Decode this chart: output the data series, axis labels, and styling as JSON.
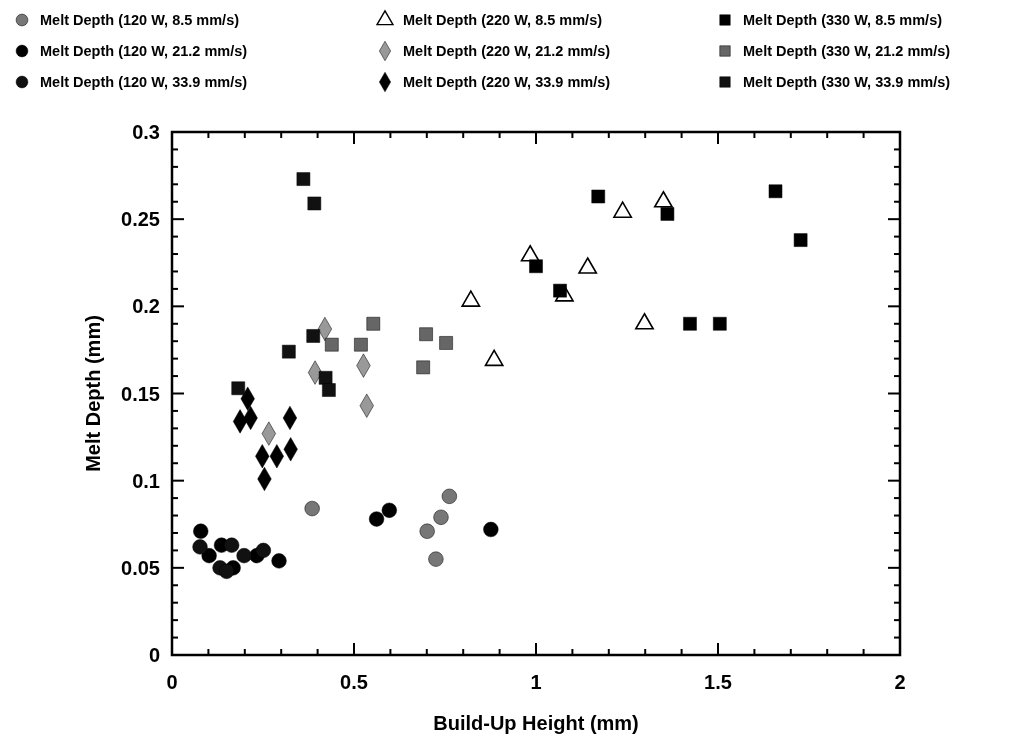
{
  "chart_data": {
    "type": "scatter",
    "xlabel": "Build-Up Height (mm)",
    "ylabel": "Melt Depth (mm)",
    "legend": "top",
    "grid": false,
    "xlim": [
      0,
      2
    ],
    "ylim": [
      0,
      0.3
    ],
    "xticks": [
      0,
      {
        "value": 0.1,
        "label": null
      },
      {
        "value": 0.2,
        "label": null
      },
      {
        "value": 0.3,
        "label": null
      },
      {
        "value": 0.4,
        "label": null
      },
      0.5,
      {
        "value": 0.6,
        "label": null
      },
      {
        "value": 0.7,
        "label": null
      },
      {
        "value": 0.8,
        "label": null
      },
      {
        "value": 0.9,
        "label": null
      },
      1,
      {
        "value": 1.1,
        "label": null
      },
      {
        "value": 1.2,
        "label": null
      },
      {
        "value": 1.3,
        "label": null
      },
      {
        "value": 1.4,
        "label": null
      },
      1.5,
      {
        "value": 1.6,
        "label": null
      },
      {
        "value": 1.7,
        "label": null
      },
      {
        "value": 1.8,
        "label": null
      },
      {
        "value": 1.9,
        "label": null
      },
      2
    ],
    "yticks": [
      0,
      {
        "value": 0.01,
        "label": null
      },
      {
        "value": 0.02,
        "label": null
      },
      {
        "value": 0.03,
        "label": null
      },
      {
        "value": 0.04,
        "label": null
      },
      0.05,
      {
        "value": 0.06,
        "label": null
      },
      {
        "value": 0.07,
        "label": null
      },
      {
        "value": 0.08,
        "label": null
      },
      {
        "value": 0.09,
        "label": null
      },
      0.1,
      {
        "value": 0.11,
        "label": null
      },
      {
        "value": 0.12,
        "label": null
      },
      {
        "value": 0.13,
        "label": null
      },
      {
        "value": 0.14,
        "label": null
      },
      0.15,
      {
        "value": 0.16,
        "label": null
      },
      {
        "value": 0.17,
        "label": null
      },
      {
        "value": 0.18,
        "label": null
      },
      {
        "value": 0.19,
        "label": null
      },
      0.2,
      {
        "value": 0.21,
        "label": null
      },
      {
        "value": 0.22,
        "label": null
      },
      {
        "value": 0.23,
        "label": null
      },
      {
        "value": 0.24,
        "label": null
      },
      0.25,
      {
        "value": 0.26,
        "label": null
      },
      {
        "value": 0.27,
        "label": null
      },
      {
        "value": 0.28,
        "label": null
      },
      {
        "value": 0.29,
        "label": null
      },
      0.3
    ],
    "series": [
      {
        "name": "Melt Depth (120 W, 8.5 mm/s)",
        "color": "#777777",
        "marker": "circle",
        "x": [
          0.385,
          0.762,
          0.739,
          0.701,
          0.725
        ],
        "values": [
          0.084,
          0.091,
          0.079,
          0.071,
          0.055
        ]
      },
      {
        "name": "Melt Depth (120 W, 21.2 mm/s)",
        "color": "#000000",
        "marker": "circle",
        "x": [
          0.079,
          0.102,
          0.136,
          0.168,
          0.233,
          0.294,
          0.562,
          0.597,
          0.876
        ],
        "values": [
          0.071,
          0.057,
          0.063,
          0.05,
          0.057,
          0.054,
          0.078,
          0.083,
          0.072
        ]
      },
      {
        "name": "Melt Depth (120 W, 33.9 mm/s)",
        "color": "#111111",
        "marker": "circle",
        "x": [
          0.077,
          0.132,
          0.15,
          0.164,
          0.198,
          0.251
        ],
        "values": [
          0.062,
          0.05,
          0.048,
          0.063,
          0.057,
          0.06
        ]
      },
      {
        "name": "Melt Depth (220 W, 8.5 mm/s)",
        "color": "#ffffff",
        "marker": "triangle",
        "x": [
          0.984,
          1.142,
          1.078,
          0.821,
          0.885,
          1.238,
          1.35,
          1.298
        ],
        "values": [
          0.229,
          0.222,
          0.206,
          0.203,
          0.169,
          0.254,
          0.26,
          0.19
        ]
      },
      {
        "name": "Melt Depth (220 W, 21.2 mm/s)",
        "color": "#999999",
        "marker": "diamond",
        "x": [
          0.266,
          0.393,
          0.42,
          0.526,
          0.535
        ],
        "values": [
          0.127,
          0.162,
          0.187,
          0.166,
          0.143
        ]
      },
      {
        "name": "Melt Depth (220 W, 33.9 mm/s)",
        "color": "#000000",
        "marker": "diamond",
        "x": [
          0.208,
          0.187,
          0.216,
          0.324,
          0.248,
          0.288,
          0.326,
          0.254
        ],
        "values": [
          0.147,
          0.134,
          0.136,
          0.136,
          0.114,
          0.114,
          0.118,
          0.101
        ]
      },
      {
        "name": "Melt Depth (330 W, 8.5 mm/s)",
        "color": "#000000",
        "marker": "square",
        "x": [
          1.0,
          1.066,
          1.171,
          1.361,
          1.423,
          1.505,
          1.658,
          1.727
        ],
        "values": [
          0.223,
          0.209,
          0.263,
          0.253,
          0.19,
          0.19,
          0.266,
          0.238
        ]
      },
      {
        "name": "Melt Depth (330 W, 21.2 mm/s)",
        "color": "#666666",
        "marker": "square",
        "x": [
          0.439,
          0.519,
          0.553,
          0.698,
          0.753,
          0.69
        ],
        "values": [
          0.178,
          0.178,
          0.19,
          0.184,
          0.179,
          0.165
        ]
      },
      {
        "name": "Melt Depth (330 W, 33.9 mm/s)",
        "color": "#111111",
        "marker": "square",
        "x": [
          0.361,
          0.391,
          0.388,
          0.321,
          0.182,
          0.422,
          0.431
        ],
        "values": [
          0.273,
          0.259,
          0.183,
          0.174,
          0.153,
          0.159,
          0.152
        ]
      }
    ]
  }
}
